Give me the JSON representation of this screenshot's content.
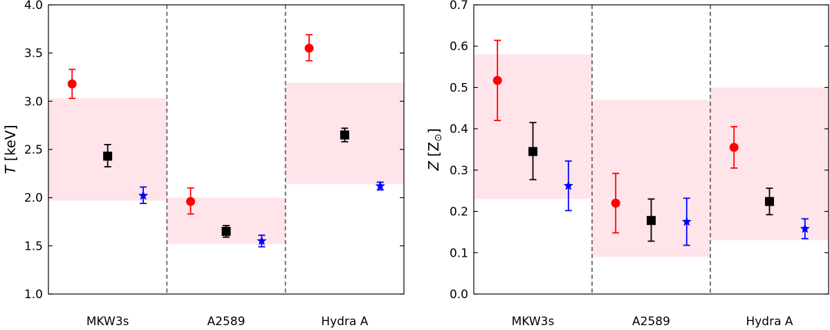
{
  "chart_data": [
    {
      "type": "scatter",
      "title": "",
      "xlabel": "",
      "ylabel_italic": "T",
      "ylabel_rest": " [keV]",
      "ylim": [
        1.0,
        4.0
      ],
      "yticks": [
        "1.0",
        "1.5",
        "2.0",
        "2.5",
        "3.0",
        "3.5",
        "4.0"
      ],
      "ytick_values": [
        1.0,
        1.5,
        2.0,
        2.5,
        3.0,
        3.5,
        4.0
      ],
      "categories": [
        "MKW3s",
        "A2589",
        "Hydra A"
      ],
      "bands": [
        {
          "category": "MKW3s",
          "low": 1.97,
          "high": 3.03
        },
        {
          "category": "A2589",
          "low": 1.52,
          "high": 2.0
        },
        {
          "category": "Hydra A",
          "low": 2.14,
          "high": 3.19
        }
      ],
      "series": [
        {
          "name": "red-circle",
          "marker": "circle",
          "color": "#ff0000",
          "offset": -0.3,
          "values": [
            3.18,
            1.96,
            3.55
          ],
          "err_low": [
            0.15,
            0.13,
            0.13
          ],
          "err_high": [
            0.15,
            0.14,
            0.14
          ]
        },
        {
          "name": "black-square",
          "marker": "square",
          "color": "#000000",
          "offset": 0.0,
          "values": [
            2.43,
            1.65,
            2.65
          ],
          "err_low": [
            0.11,
            0.06,
            0.07
          ],
          "err_high": [
            0.12,
            0.06,
            0.07
          ]
        },
        {
          "name": "blue-star",
          "marker": "star",
          "color": "#0000ff",
          "offset": 0.3,
          "values": [
            2.02,
            1.55,
            2.12
          ],
          "err_low": [
            0.08,
            0.06,
            0.04
          ],
          "err_high": [
            0.09,
            0.06,
            0.04
          ]
        }
      ]
    },
    {
      "type": "scatter",
      "title": "",
      "xlabel": "",
      "ylabel_italic": "Z",
      "ylabel_rest": " [Z",
      "ylabel_sub": "⊙",
      "ylabel_end": "]",
      "ylim": [
        0.0,
        0.7
      ],
      "yticks": [
        "0.0",
        "0.1",
        "0.2",
        "0.3",
        "0.4",
        "0.5",
        "0.6",
        "0.7"
      ],
      "ytick_values": [
        0.0,
        0.1,
        0.2,
        0.3,
        0.4,
        0.5,
        0.6,
        0.7
      ],
      "categories": [
        "MKW3s",
        "A2589",
        "Hydra A"
      ],
      "bands": [
        {
          "category": "MKW3s",
          "low": 0.23,
          "high": 0.58
        },
        {
          "category": "A2589",
          "low": 0.09,
          "high": 0.47
        },
        {
          "category": "Hydra A",
          "low": 0.13,
          "high": 0.5
        }
      ],
      "series": [
        {
          "name": "red-circle",
          "marker": "circle",
          "color": "#ff0000",
          "offset": -0.3,
          "values": [
            0.517,
            0.22,
            0.355
          ],
          "err_low": [
            0.097,
            0.072,
            0.05
          ],
          "err_high": [
            0.097,
            0.072,
            0.05
          ]
        },
        {
          "name": "black-square",
          "marker": "square",
          "color": "#000000",
          "offset": 0.0,
          "values": [
            0.345,
            0.178,
            0.224
          ],
          "err_low": [
            0.068,
            0.05,
            0.032
          ],
          "err_high": [
            0.07,
            0.052,
            0.032
          ]
        },
        {
          "name": "blue-star",
          "marker": "star",
          "color": "#0000ff",
          "offset": 0.3,
          "values": [
            0.262,
            0.175,
            0.158
          ],
          "err_low": [
            0.06,
            0.057,
            0.024
          ],
          "err_high": [
            0.06,
            0.057,
            0.024
          ]
        }
      ]
    }
  ],
  "colors": {
    "band": "#ffe4ea",
    "divider": "#666666",
    "axis": "#000000"
  }
}
